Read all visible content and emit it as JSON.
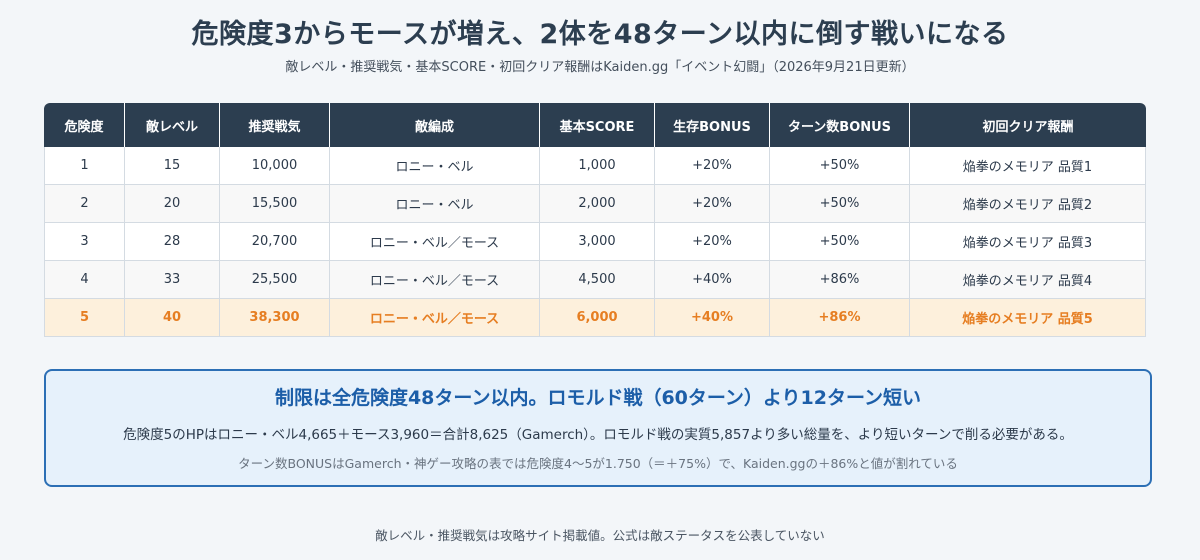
{
  "title": "危険度3からモースが増え、2体を48ターン以内に倒す戦いになる",
  "subtitle": "敵レベル・推奨戦気・基本SCORE・初回クリア報酬はKaiden.gg「イベント幻闘」（2026年9月21日更新）",
  "table": {
    "headers": [
      "危険度",
      "敵レベル",
      "推奨戦気",
      "敵編成",
      "基本SCORE",
      "生存BONUS",
      "ターン数BONUS",
      "初回クリア報酬"
    ],
    "rows": [
      [
        "1",
        "15",
        "10,000",
        "ロニー・ベル",
        "1,000",
        "+20%",
        "+50%",
        "焔拳のメモリア 品質1"
      ],
      [
        "2",
        "20",
        "15,500",
        "ロニー・ベル",
        "2,000",
        "+20%",
        "+50%",
        "焔拳のメモリア 品質2"
      ],
      [
        "3",
        "28",
        "20,700",
        "ロニー・ベル／モース",
        "3,000",
        "+20%",
        "+50%",
        "焔拳のメモリア 品質3"
      ],
      [
        "4",
        "33",
        "25,500",
        "ロニー・ベル／モース",
        "4,500",
        "+40%",
        "+86%",
        "焔拳のメモリア 品質4"
      ],
      [
        "5",
        "40",
        "38,300",
        "ロニー・ベル／モース",
        "6,000",
        "+40%",
        "+86%",
        "焔拳のメモリア 品質5"
      ]
    ],
    "highlight_row": 4,
    "colors": {
      "header_bg": "#2c3e50",
      "highlight_text": "#e67e22",
      "highlight_bg": "#fdf0dc"
    }
  },
  "notice": {
    "title": "制限は全危険度48ターン以内。ロモルド戦（60ターン）より12ターン短い",
    "body": "危険度5のHPはロニー・ベル4,665＋モース3,960＝合計8,625（Gamerch）。ロモルド戦の実質5,857より多い総量を、より短いターンで削る必要がある。",
    "note": "ターン数BONUSはGamerch・神ゲー攻略の表では危険度4〜5が1.750（＝＋75%）で、Kaiden.ggの＋86%と値が割れている",
    "colors": {
      "border": "#2c6fb5",
      "title": "#1c5ea8",
      "bg": "#e6f1fb"
    }
  },
  "footer": "敵レベル・推奨戦気は攻略サイト掲載値。公式は敵ステータスを公表していない"
}
